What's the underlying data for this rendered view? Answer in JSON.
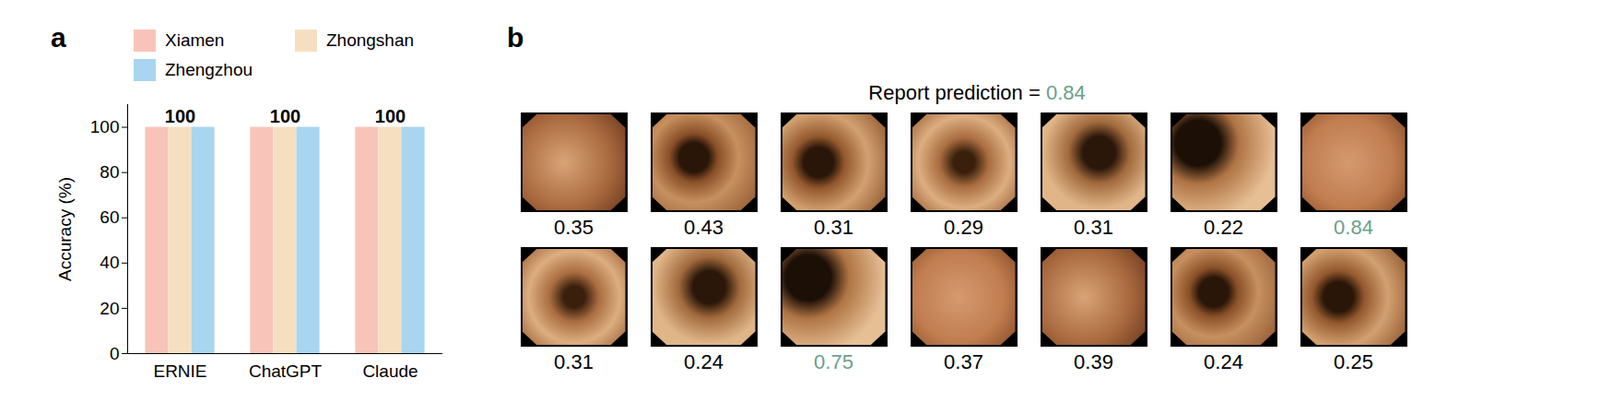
{
  "chart_data": [
    {
      "type": "bar",
      "panel_label": "a",
      "categories": [
        "ERNIE",
        "ChatGPT",
        "Claude"
      ],
      "series": [
        {
          "name": "Xiamen",
          "color": "#f8c4b9",
          "values": [
            100,
            100,
            100
          ]
        },
        {
          "name": "Zhongshan",
          "color": "#f6dfc1",
          "values": [
            100,
            100,
            100
          ]
        },
        {
          "name": "Zhengzhou",
          "color": "#a8d5ef",
          "values": [
            100,
            100,
            100
          ]
        }
      ],
      "group_labels": [
        100,
        100,
        100
      ],
      "ylabel": "Accuracy (%)",
      "ylim": [
        0,
        110
      ],
      "yticks": [
        0,
        20,
        40,
        60,
        80,
        100
      ],
      "grid": false,
      "legend": "top"
    },
    {
      "type": "image_grid",
      "panel_label": "b",
      "title": "Report prediction =",
      "report_prediction": 0.84,
      "title_value_color": "#6aa08b",
      "values": [
        [
          0.35,
          0.43,
          0.31,
          0.29,
          0.31,
          0.22,
          0.84
        ],
        [
          0.31,
          0.24,
          0.75,
          0.37,
          0.39,
          0.24,
          0.25
        ]
      ],
      "colors": [
        [
          "#000000",
          "#000000",
          "#000000",
          "#000000",
          "#000000",
          "#000000",
          "#6aa08b"
        ],
        [
          "#000000",
          "#000000",
          "#6aa08b",
          "#000000",
          "#000000",
          "#000000",
          "#000000"
        ]
      ]
    }
  ]
}
